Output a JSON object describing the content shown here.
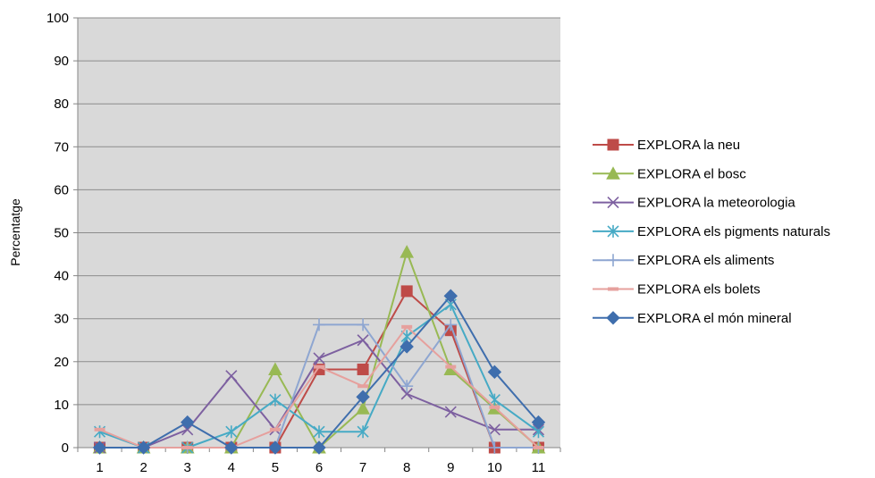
{
  "chart_data": {
    "type": "line",
    "title": "",
    "xlabel": "",
    "ylabel": "Percentatge",
    "categories": [
      "1",
      "2",
      "3",
      "4",
      "5",
      "6",
      "7",
      "8",
      "9",
      "10",
      "11"
    ],
    "ylim": [
      0,
      100
    ],
    "yticks": [
      0,
      10,
      20,
      30,
      40,
      50,
      60,
      70,
      80,
      90,
      100
    ],
    "grid": true,
    "plot_background": "#d9d9d9",
    "legend_position": "right",
    "series": [
      {
        "name": "EXPLORA la neu",
        "color": "#be4b48",
        "marker": "square",
        "values": [
          0,
          0,
          0,
          0,
          0,
          18.2,
          18.2,
          36.4,
          27.3,
          0,
          0
        ]
      },
      {
        "name": "EXPLORA el bosc",
        "color": "#98b954",
        "marker": "triangle",
        "values": [
          0,
          0,
          0,
          0,
          18.2,
          0,
          9.1,
          45.5,
          18.2,
          9.1,
          0
        ]
      },
      {
        "name": "EXPLORA la meteorologia",
        "color": "#7d60a0",
        "marker": "x",
        "values": [
          0,
          0,
          4.2,
          16.7,
          4.2,
          20.8,
          25,
          12.5,
          8.3,
          4.2,
          4.2
        ]
      },
      {
        "name": "EXPLORA els pigments naturals",
        "color": "#46aac5",
        "marker": "star",
        "values": [
          3.7,
          0,
          0,
          3.7,
          11.1,
          3.7,
          3.7,
          25.9,
          33.3,
          11.1,
          3.7
        ]
      },
      {
        "name": "EXPLORA els aliments",
        "color": "#8ea6d1",
        "marker": "plus",
        "values": [
          0,
          0,
          0,
          0,
          0,
          28.6,
          28.6,
          14.3,
          28.6,
          0,
          0
        ]
      },
      {
        "name": "EXPLORA els bolets",
        "color": "#e6a09d",
        "marker": "dash",
        "values": [
          4.2,
          0,
          0,
          0,
          4.2,
          18.8,
          14.3,
          28.1,
          18.8,
          9.4,
          0
        ]
      },
      {
        "name": "EXPLORA el món mineral",
        "color": "#3f6ead",
        "marker": "diamond",
        "values": [
          0,
          0,
          5.9,
          0,
          0,
          0,
          11.8,
          23.5,
          35.3,
          17.6,
          5.9
        ]
      }
    ]
  }
}
